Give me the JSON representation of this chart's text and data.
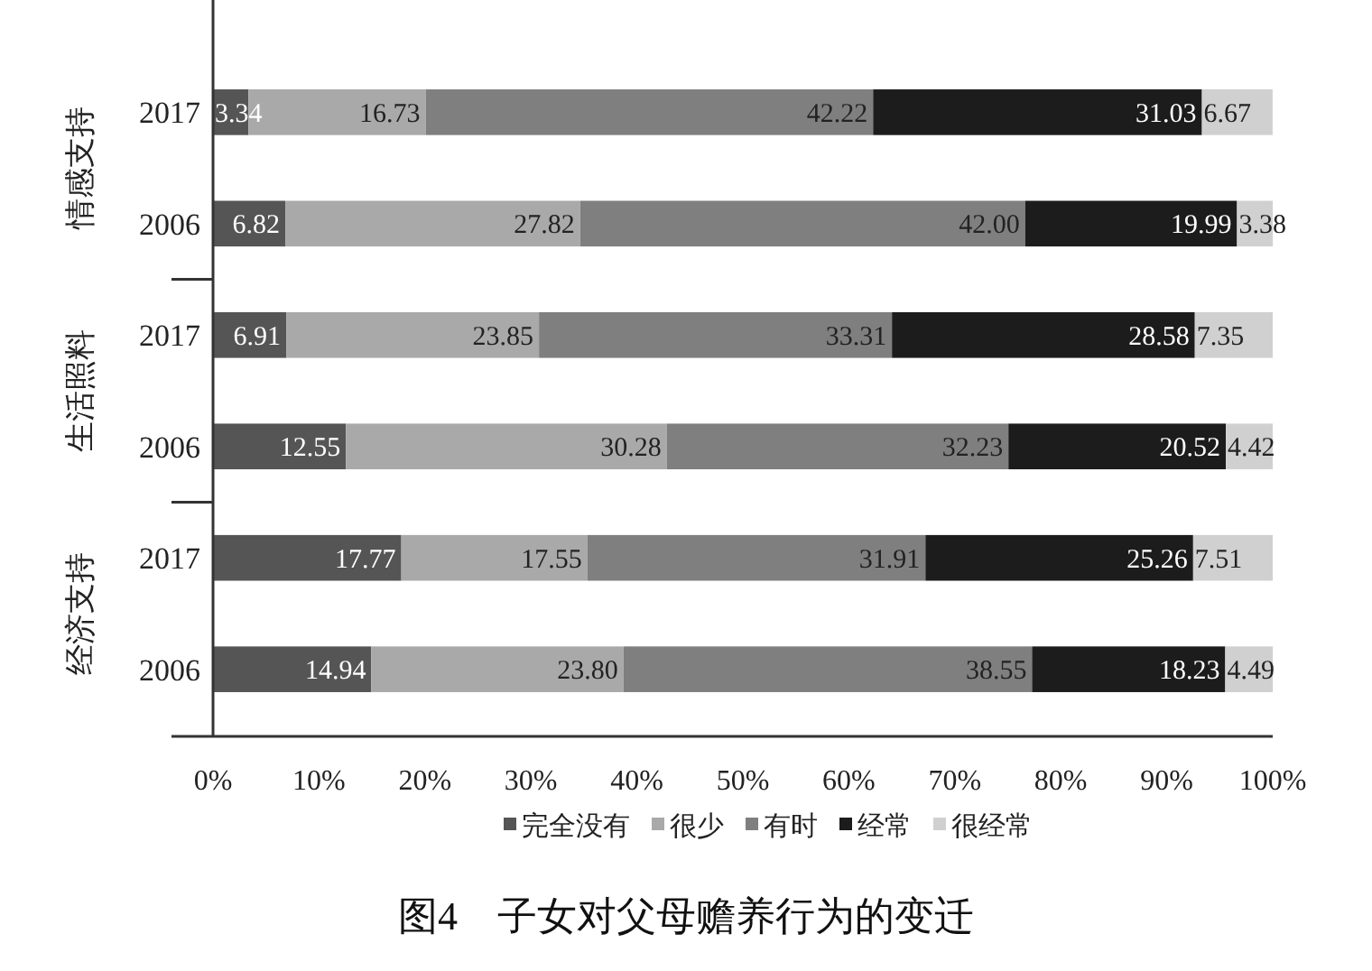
{
  "chart_data": {
    "type": "bar",
    "orientation": "horizontal",
    "stacked": true,
    "title": "图4　子女对父母赡养行为的变迁",
    "categories": [
      "2017",
      "2006",
      "2017",
      "2006",
      "2017",
      "2006"
    ],
    "annotations": [
      "情感支持",
      "生活照料",
      "经济支持"
    ],
    "series": [
      {
        "name": "完全没有",
        "color": "#555555",
        "values": [
          3.34,
          6.82,
          6.91,
          12.55,
          17.77,
          14.94
        ],
        "value_labels": [
          "3.34",
          "6.82",
          "6.91",
          "12.55",
          "17.77",
          "14.94"
        ]
      },
      {
        "name": "很少",
        "color": "#a9a9a9",
        "values": [
          16.73,
          27.82,
          23.85,
          30.28,
          17.55,
          23.8
        ],
        "value_labels": [
          "16.73",
          "27.82",
          "23.85",
          "30.28",
          "17.55",
          "23.80"
        ]
      },
      {
        "name": "有时",
        "color": "#7f7f7f",
        "values": [
          42.22,
          42.0,
          33.31,
          32.23,
          31.91,
          38.55
        ],
        "value_labels": [
          "42.22",
          "42.00",
          "33.31",
          "32.23",
          "31.91",
          "38.55"
        ]
      },
      {
        "name": "经常",
        "color": "#1c1c1c",
        "values": [
          31.03,
          19.99,
          28.58,
          20.52,
          25.26,
          18.23
        ],
        "value_labels": [
          "31.03",
          "19.99",
          "28.58",
          "20.52",
          "25.26",
          "18.23"
        ]
      },
      {
        "name": "很经常",
        "color": "#d0d0d0",
        "values": [
          6.67,
          3.38,
          7.35,
          4.42,
          7.51,
          4.49
        ],
        "value_labels": [
          "6.67",
          "3.38",
          "7.35",
          "4.42",
          "7.51",
          "4.49"
        ]
      }
    ],
    "xlim": [
      0,
      100
    ],
    "xticks": [
      {
        "value": 0,
        "label": "0%"
      },
      {
        "value": 10,
        "label": "10%"
      },
      {
        "value": 20,
        "label": "20%"
      },
      {
        "value": 30,
        "label": "30%"
      },
      {
        "value": 40,
        "label": "40%"
      },
      {
        "value": 50,
        "label": "50%"
      },
      {
        "value": 60,
        "label": "60%"
      },
      {
        "value": 70,
        "label": "70%"
      },
      {
        "value": 80,
        "label": "80%"
      },
      {
        "value": 90,
        "label": "90%"
      },
      {
        "value": 100,
        "label": "100%"
      }
    ],
    "legend": "bottom",
    "grid": false
  }
}
